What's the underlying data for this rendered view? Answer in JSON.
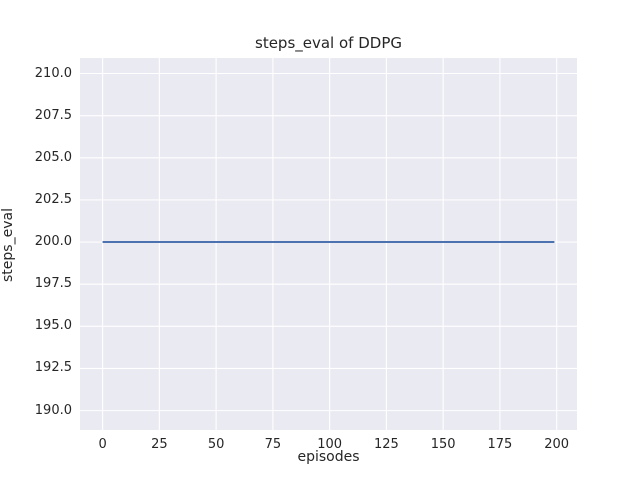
{
  "figure": {
    "background": "#ffffff"
  },
  "chart_data": {
    "type": "line",
    "title": "steps_eval of DDPG",
    "xlabel": "episodes",
    "ylabel": "steps_eval",
    "x_ticks": [
      {
        "value": 0,
        "label": "0"
      },
      {
        "value": 25,
        "label": "25"
      },
      {
        "value": 50,
        "label": "50"
      },
      {
        "value": 75,
        "label": "75"
      },
      {
        "value": 100,
        "label": "100"
      },
      {
        "value": 125,
        "label": "125"
      },
      {
        "value": 150,
        "label": "150"
      },
      {
        "value": 175,
        "label": "175"
      },
      {
        "value": 200,
        "label": "200"
      }
    ],
    "y_ticks": [
      {
        "value": 190.0,
        "label": "190.0"
      },
      {
        "value": 192.5,
        "label": "192.5"
      },
      {
        "value": 195.0,
        "label": "195.0"
      },
      {
        "value": 197.5,
        "label": "197.5"
      },
      {
        "value": 200.0,
        "label": "200.0"
      },
      {
        "value": 202.5,
        "label": "202.5"
      },
      {
        "value": 205.0,
        "label": "205.0"
      },
      {
        "value": 207.5,
        "label": "207.5"
      },
      {
        "value": 210.0,
        "label": "210.0"
      }
    ],
    "xlim": [
      -9.95,
      208.95
    ],
    "ylim": [
      188.85,
      210.92
    ],
    "grid": true,
    "legend_position": "none",
    "style": {
      "plot_background": "#eaeaf2",
      "grid_color": "#ffffff",
      "text_color": "#262626",
      "line_width": 2
    },
    "series": [
      {
        "name": "steps_eval",
        "color": "#4c72b0",
        "x": [
          0,
          199
        ],
        "y": [
          200.0,
          200.0
        ],
        "note_visible_shape": "constant flat line at 200 from episode 0 to 199"
      }
    ]
  }
}
